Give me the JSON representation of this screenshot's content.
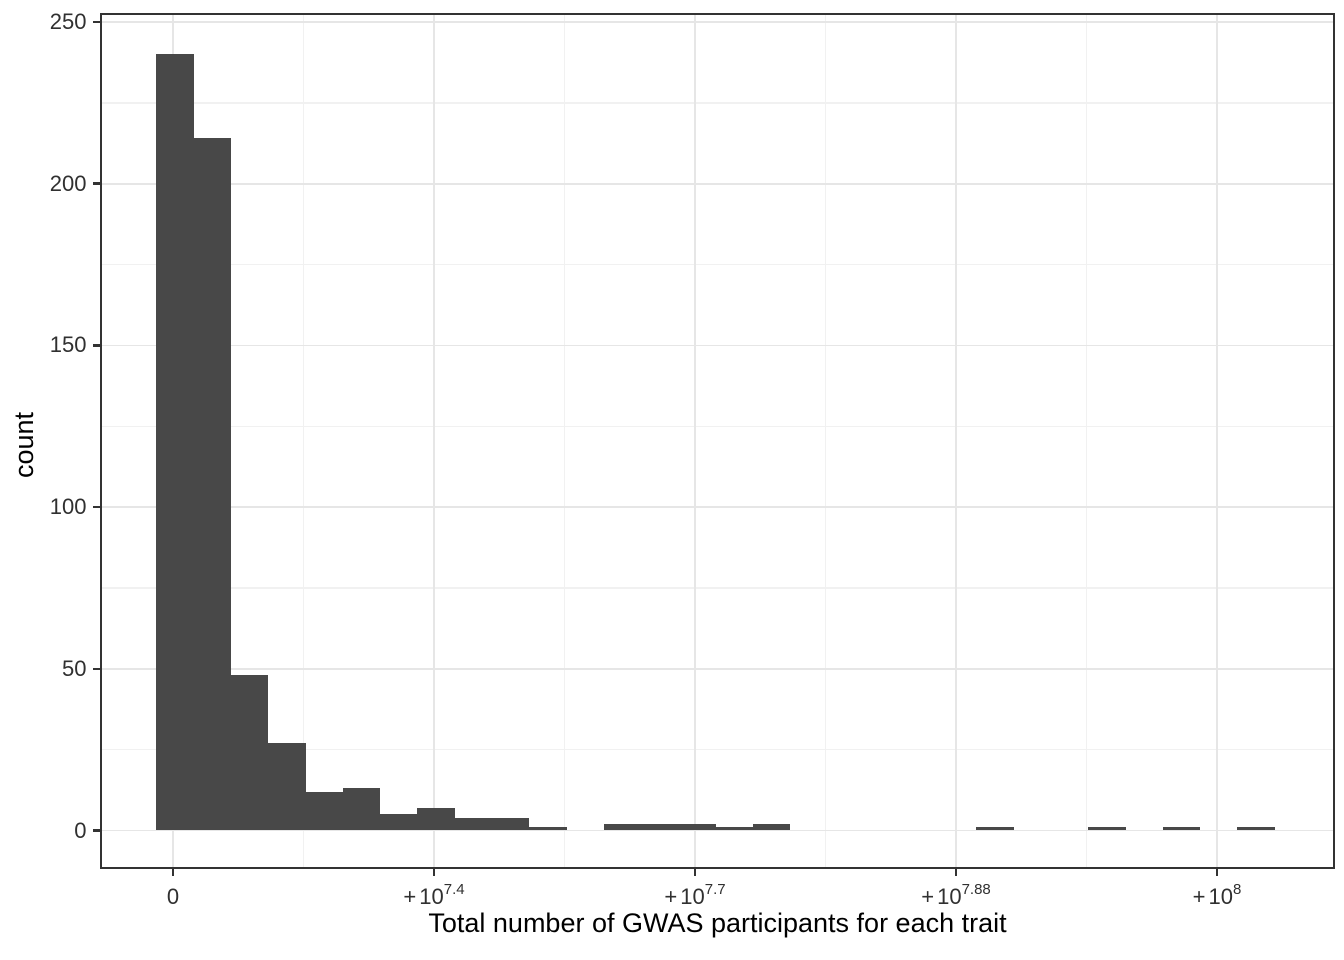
{
  "chart_data": {
    "type": "bar",
    "subtype": "histogram",
    "title": "",
    "xlabel": "Total number of GWAS participants for each trait",
    "ylabel": "count",
    "x_scale_note": "linear scale in number of participants; major breaks labeled as powers of ten",
    "bin_width_millions": 3.571,
    "first_bin_left_millions": -1.6,
    "counts": [
      240,
      214,
      48,
      27,
      12,
      13,
      5,
      7,
      4,
      4,
      1,
      0,
      2,
      2,
      2,
      1,
      2,
      0,
      0,
      0,
      0,
      0,
      1,
      0,
      0,
      1,
      0,
      1,
      0,
      1
    ],
    "x_ticks": [
      {
        "label_base": "0",
        "label_sup": "",
        "value_millions": 0
      },
      {
        "label_base": "+10",
        "label_sup": "7.4",
        "value_millions": 25
      },
      {
        "label_base": "+10",
        "label_sup": "7.7",
        "value_millions": 50
      },
      {
        "label_base": "+10",
        "label_sup": "7.88",
        "value_millions": 75
      },
      {
        "label_base": "+10",
        "label_sup": "8",
        "value_millions": 100
      }
    ],
    "x_minor_millions": [
      12.5,
      37.5,
      62.5,
      87.5
    ],
    "y_ticks": [
      0,
      50,
      100,
      150,
      200,
      250
    ],
    "y_minor": [
      25,
      75,
      125,
      175,
      225
    ],
    "xlim_millions": [
      -6.9,
      111.2
    ],
    "ylim": [
      -11.3,
      252
    ],
    "legend": "none",
    "grid": "on",
    "colors": {
      "bar_fill": "#484848",
      "grid_major": "#E6E6E6",
      "grid_minor": "#F1F1F1",
      "panel_border": "#333333",
      "tick_mark": "#333333",
      "tick_label": "#303030",
      "axis_title": "#000000",
      "background": "#FFFFFF"
    }
  }
}
